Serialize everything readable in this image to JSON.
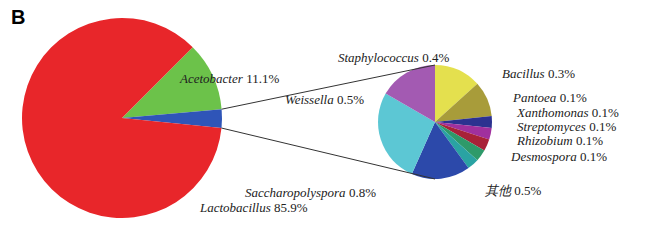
{
  "chart_data": [
    {
      "type": "pie",
      "title": "B",
      "categories": [
        "Acetobacter",
        null,
        "Lactobacillus"
      ],
      "values": [
        11.1,
        3.0,
        85.9
      ],
      "value_labels": [
        "11.1%",
        null,
        "85.9%"
      ],
      "colors": [
        "#6cc24a",
        "#2f55b8",
        "#e8262a"
      ],
      "data_labels": true
    },
    {
      "type": "pie",
      "categories": [
        "Staphylococcus",
        "Bacillus",
        "Pantoea",
        "Xanthomonas",
        "Streptomyces",
        "Rhizobium",
        "Desmospora",
        "其他",
        "Saccharopolyspora",
        "Weissella"
      ],
      "values": [
        0.4,
        0.3,
        0.1,
        0.1,
        0.1,
        0.1,
        0.1,
        0.5,
        0.8,
        0.5
      ],
      "value_labels": [
        "0.4%",
        "0.3%",
        "0.1%",
        "0.1%",
        "0.1%",
        "0.1%",
        "0.1%",
        "0.5%",
        "0.8%",
        "0.5%"
      ],
      "colors": [
        "#e4e04e",
        "#a89c3a",
        "#2c3290",
        "#a0309e",
        "#a82238",
        "#2e9a6a",
        "#2aa3a3",
        "#2c49aa",
        "#5cc7d4",
        "#a35ab2"
      ],
      "data_labels": true
    }
  ]
}
